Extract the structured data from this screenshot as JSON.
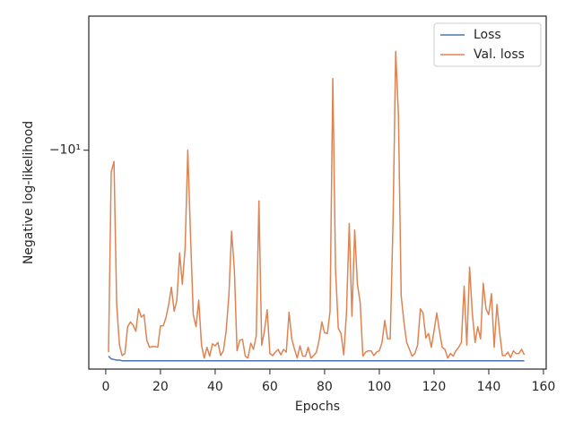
{
  "chart_data": {
    "type": "line",
    "xlabel": "Epochs",
    "ylabel": "Negative log-likelihood",
    "yscale": "symlog",
    "legend": "upper right",
    "xlim": [
      -6.2,
      161
    ],
    "xticks": [
      0,
      20,
      40,
      60,
      80,
      100,
      120,
      140,
      160
    ],
    "ylim": [
      -31,
      -5
    ],
    "yticks": [
      {
        "value": -10,
        "label": "−10¹"
      }
    ],
    "x": [
      1,
      2,
      3,
      4,
      5,
      6,
      7,
      8,
      9,
      10,
      11,
      12,
      13,
      14,
      15,
      16,
      17,
      18,
      19,
      20,
      21,
      22,
      23,
      24,
      25,
      26,
      27,
      28,
      29,
      30,
      31,
      32,
      33,
      34,
      35,
      36,
      37,
      38,
      39,
      40,
      41,
      42,
      43,
      44,
      45,
      46,
      47,
      48,
      49,
      50,
      51,
      52,
      53,
      54,
      55,
      56,
      57,
      58,
      59,
      60,
      61,
      62,
      63,
      64,
      65,
      66,
      67,
      68,
      69,
      70,
      71,
      72,
      73,
      74,
      75,
      76,
      77,
      78,
      79,
      80,
      81,
      82,
      83,
      84,
      85,
      86,
      87,
      88,
      89,
      90,
      91,
      92,
      93,
      94,
      95,
      96,
      97,
      98,
      99,
      100,
      101,
      102,
      103,
      104,
      105,
      106,
      107,
      108,
      109,
      110,
      111,
      112,
      113,
      114,
      115,
      116,
      117,
      118,
      119,
      120,
      121,
      122,
      123,
      124,
      125,
      126,
      127,
      128,
      129,
      130,
      131,
      132,
      133,
      134,
      135,
      136,
      137,
      138,
      139,
      140,
      141,
      142,
      143,
      144,
      145,
      146,
      147,
      148,
      149,
      150,
      151,
      152,
      153
    ],
    "series": [
      {
        "name": "Loss",
        "color": "#4c72b0",
        "values": [
          -29.0,
          -29.4,
          -29.5,
          -29.6,
          -29.6,
          -29.7,
          -29.7,
          -29.7,
          -29.7,
          -29.7,
          -29.7,
          -29.7,
          -29.7,
          -29.7,
          -29.7,
          -29.7,
          -29.7,
          -29.7,
          -29.7,
          -29.7,
          -29.7,
          -29.7,
          -29.7,
          -29.7,
          -29.7,
          -29.7,
          -29.7,
          -29.7,
          -29.7,
          -29.7,
          -29.7,
          -29.7,
          -29.7,
          -29.7,
          -29.7,
          -29.7,
          -29.7,
          -29.7,
          -29.7,
          -29.7,
          -29.7,
          -29.7,
          -29.7,
          -29.7,
          -29.7,
          -29.7,
          -29.7,
          -29.7,
          -29.7,
          -29.7,
          -29.7,
          -29.7,
          -29.7,
          -29.7,
          -29.7,
          -29.7,
          -29.7,
          -29.7,
          -29.7,
          -29.7,
          -29.7,
          -29.7,
          -29.7,
          -29.7,
          -29.7,
          -29.7,
          -29.7,
          -29.7,
          -29.7,
          -29.7,
          -29.7,
          -29.7,
          -29.7,
          -29.7,
          -29.7,
          -29.7,
          -29.7,
          -29.7,
          -29.7,
          -29.7,
          -29.7,
          -29.7,
          -29.7,
          -29.7,
          -29.7,
          -29.7,
          -29.7,
          -29.7,
          -29.7,
          -29.7,
          -29.7,
          -29.7,
          -29.7,
          -29.7,
          -29.7,
          -29.7,
          -29.7,
          -29.7,
          -29.7,
          -29.7,
          -29.7,
          -29.7,
          -29.7,
          -29.7,
          -29.7,
          -29.7,
          -29.7,
          -29.7,
          -29.7,
          -29.7,
          -29.7,
          -29.7,
          -29.7,
          -29.7,
          -29.7,
          -29.7,
          -29.7,
          -29.7,
          -29.7,
          -29.7,
          -29.7,
          -29.7,
          -29.7,
          -29.7,
          -29.7,
          -29.7,
          -29.7,
          -29.7,
          -29.7,
          -29.7,
          -29.7,
          -29.7,
          -29.7,
          -29.7,
          -29.7,
          -29.7,
          -29.7,
          -29.7,
          -29.7,
          -29.7,
          -29.7,
          -29.7,
          -29.7,
          -29.7,
          -29.7,
          -29.7,
          -29.7,
          -29.7,
          -29.7,
          -29.7,
          -29.7,
          -29.7,
          -29.7
        ]
      },
      {
        "name": "Val. loss",
        "color": "#dd8452",
        "values": [
          -28.4,
          -11.2,
          -10.6,
          -22.2,
          -27.4,
          -28.9,
          -28.6,
          -24.9,
          -24.3,
          -24.7,
          -25.5,
          -22.7,
          -23.7,
          -23.4,
          -26.7,
          -27.7,
          -27.6,
          -27.6,
          -27.7,
          -24.8,
          -24.8,
          -23.8,
          -22.2,
          -20.3,
          -23.0,
          -21.7,
          -17.0,
          -20.0,
          -16.6,
          -10.0,
          -15.7,
          -23.4,
          -24.9,
          -21.7,
          -27.4,
          -29.3,
          -27.7,
          -29.0,
          -27.2,
          -27.5,
          -27.0,
          -28.9,
          -28.2,
          -25.5,
          -21.2,
          -15.2,
          -18.5,
          -28.2,
          -26.7,
          -26.6,
          -29.0,
          -29.3,
          -27.1,
          -28.0,
          -26.1,
          -13.0,
          -27.4,
          -25.5,
          -22.8,
          -28.6,
          -28.9,
          -28.4,
          -28.0,
          -28.8,
          -28.0,
          -28.4,
          -23.1,
          -26.5,
          -28.0,
          -29.3,
          -27.5,
          -29.0,
          -29.0,
          -27.7,
          -29.3,
          -28.9,
          -28.4,
          -26.7,
          -24.3,
          -25.7,
          -25.8,
          -23.0,
          -6.9,
          -18.5,
          -25.1,
          -25.8,
          -28.8,
          -23.2,
          -14.6,
          -23.6,
          -15.1,
          -20.0,
          -22.0,
          -29.0,
          -28.4,
          -28.2,
          -28.2,
          -28.9,
          -28.4,
          -28.2,
          -27.0,
          -24.1,
          -26.5,
          -26.5,
          -14.6,
          -6.0,
          -8.4,
          -21.2,
          -24.3,
          -27.0,
          -28.0,
          -29.0,
          -28.6,
          -27.4,
          -22.7,
          -23.2,
          -26.4,
          -25.8,
          -27.7,
          -25.5,
          -23.2,
          -25.5,
          -27.7,
          -28.0,
          -29.3,
          -28.6,
          -29.0,
          -28.2,
          -27.7,
          -27.0,
          -20.2,
          -27.4,
          -18.3,
          -23.2,
          -27.0,
          -24.9,
          -26.5,
          -19.9,
          -22.7,
          -23.4,
          -21.0,
          -27.7,
          -22.2,
          -25.7,
          -28.9,
          -28.9,
          -28.4,
          -29.2,
          -28.2,
          -28.6,
          -28.6,
          -28.0,
          -28.8
        ]
      }
    ]
  }
}
